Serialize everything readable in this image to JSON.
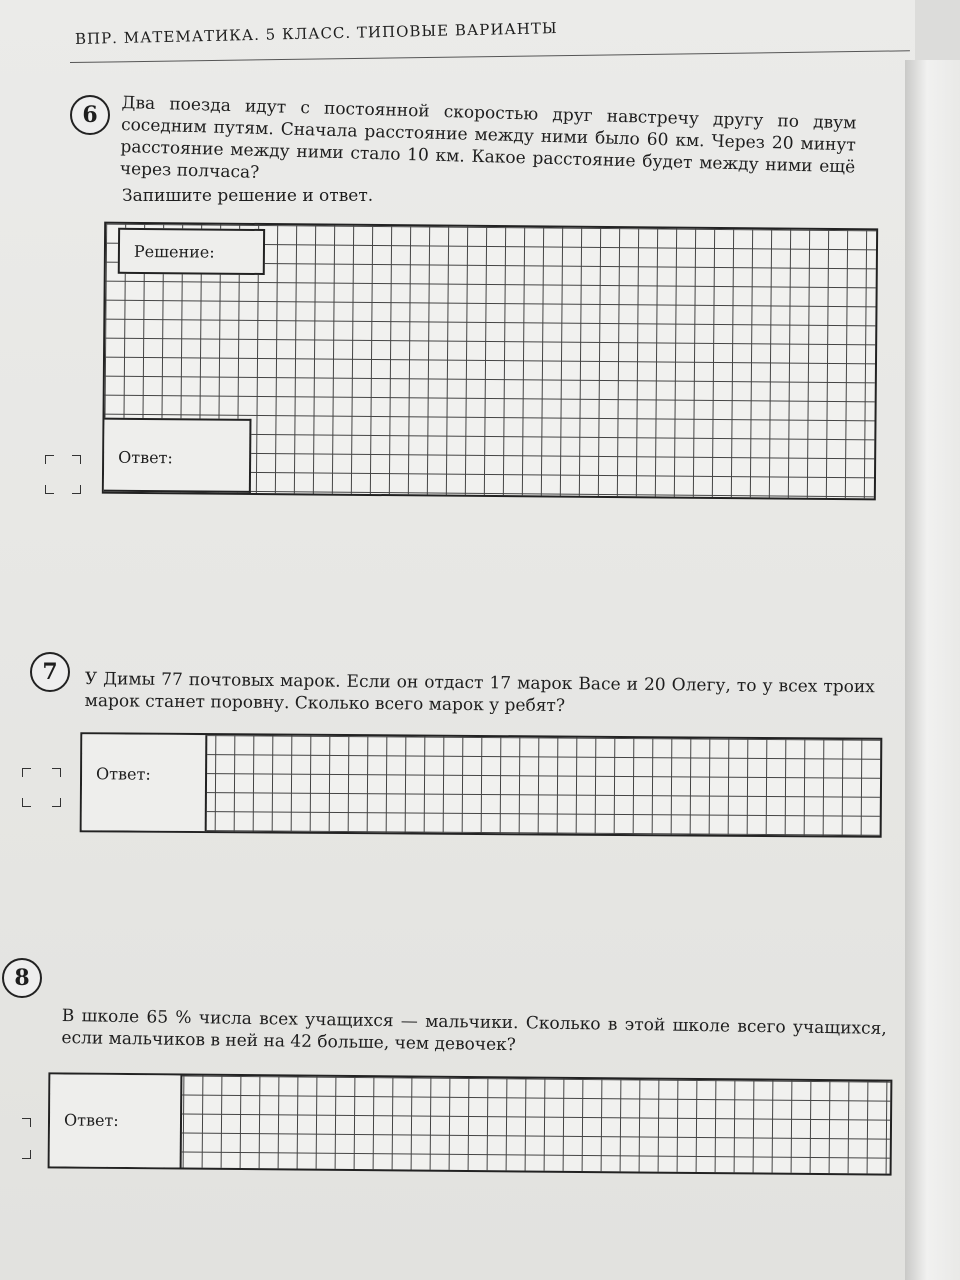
{
  "header": "ВПР. МАТЕМАТИКА. 5 КЛАСС. ТИПОВЫЕ ВАРИАНТЫ",
  "tasks": [
    {
      "number": "6",
      "text": "Два поезда идут с постоянной скоростью друг навстречу другу по двум соседним путям. Сначала расстояние между ними было 60 км. Через 20 минут расстояние между ними стало 10 км. Какое расстояние будет между ними ещё через полчаса?",
      "instruction": "Запишите решение и ответ.",
      "solution_label": "Решение:",
      "answer_label": "Ответ:"
    },
    {
      "number": "7",
      "text": "У Димы 77 почтовых марок. Если он отдаст 17 марок Васе и 20 Олегу, то у всех троих марок станет поровну. Сколько всего марок у ребят?",
      "answer_label": "Ответ:"
    },
    {
      "number": "8",
      "text": "В школе 65 % числа всех учащихся — мальчики. Сколько в этой школе всего учащихся, если мальчиков в ней на 42 больше, чем девочек?",
      "answer_label": "Ответ:"
    }
  ]
}
